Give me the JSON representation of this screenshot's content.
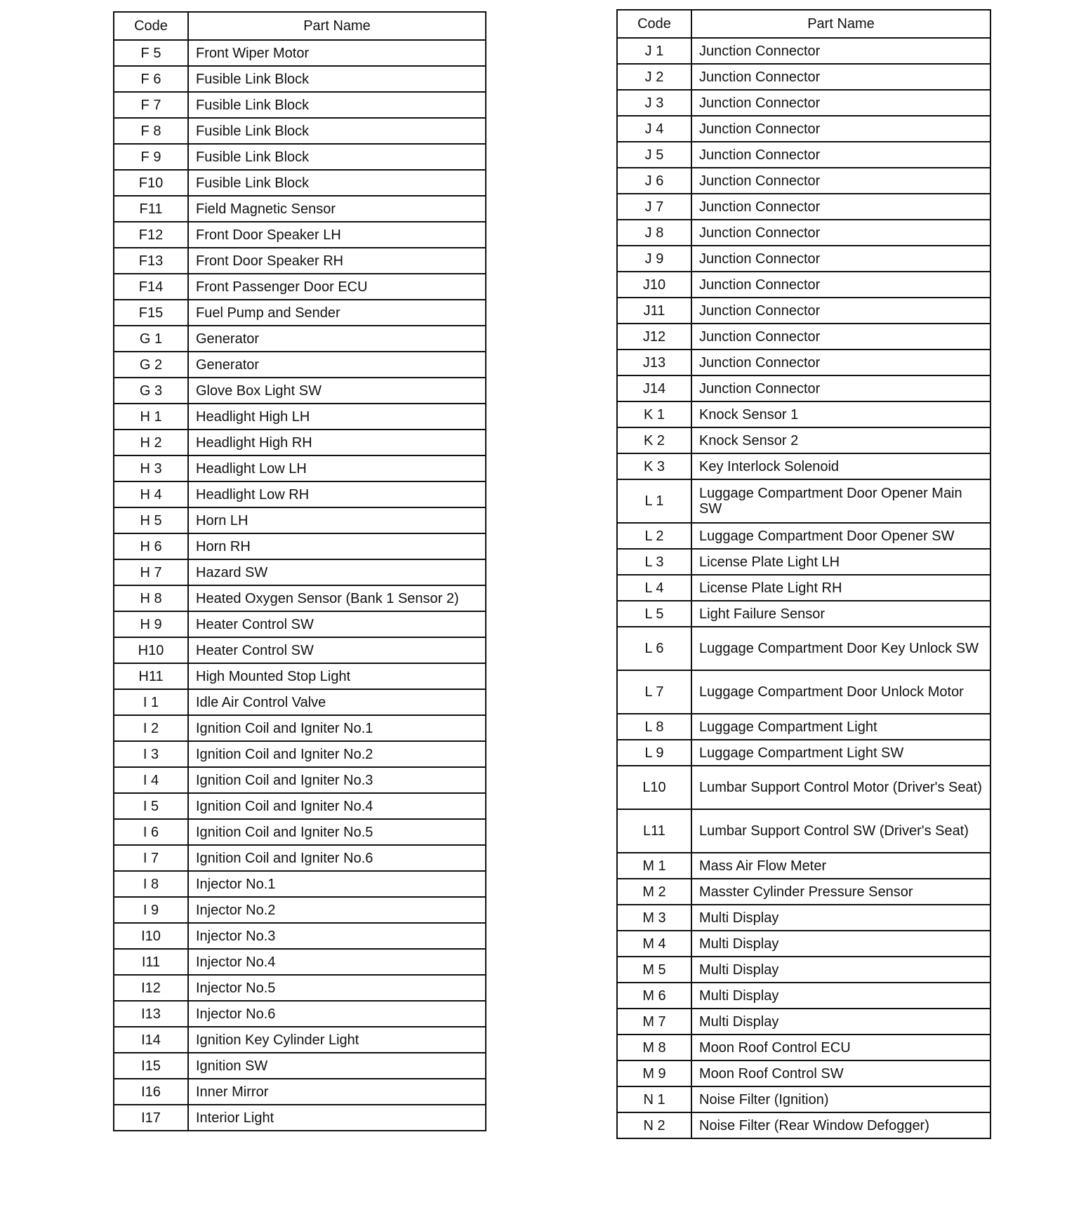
{
  "left_table": {
    "headers": [
      "Code",
      "Part Name"
    ],
    "rows": [
      [
        "F 5",
        "Front Wiper Motor"
      ],
      [
        "F 6",
        "Fusible Link Block"
      ],
      [
        "F 7",
        "Fusible Link Block"
      ],
      [
        "F 8",
        "Fusible Link Block"
      ],
      [
        "F 9",
        "Fusible Link Block"
      ],
      [
        "F10",
        "Fusible Link Block"
      ],
      [
        "F11",
        "Field Magnetic Sensor"
      ],
      [
        "F12",
        "Front Door Speaker LH"
      ],
      [
        "F13",
        "Front Door Speaker RH"
      ],
      [
        "F14",
        "Front Passenger Door ECU"
      ],
      [
        "F15",
        "Fuel Pump and Sender"
      ],
      [
        "G 1",
        "Generator"
      ],
      [
        "G 2",
        "Generator"
      ],
      [
        "G 3",
        "Glove Box Light SW"
      ],
      [
        "H 1",
        "Headlight High LH"
      ],
      [
        "H 2",
        "Headlight High RH"
      ],
      [
        "H 3",
        "Headlight Low LH"
      ],
      [
        "H 4",
        "Headlight Low RH"
      ],
      [
        "H 5",
        "Horn LH"
      ],
      [
        "H 6",
        "Horn RH"
      ],
      [
        "H 7",
        "Hazard SW"
      ],
      [
        "H 8",
        "Heated Oxygen Sensor (Bank 1 Sensor 2)"
      ],
      [
        "H 9",
        "Heater Control SW"
      ],
      [
        "H10",
        "Heater Control SW"
      ],
      [
        "H11",
        "High Mounted Stop Light"
      ],
      [
        "I 1",
        "Idle Air Control Valve"
      ],
      [
        "I 2",
        "Ignition Coil and Igniter No.1"
      ],
      [
        "I 3",
        "Ignition Coil and Igniter No.2"
      ],
      [
        "I 4",
        "Ignition Coil and Igniter No.3"
      ],
      [
        "I 5",
        "Ignition Coil and Igniter No.4"
      ],
      [
        "I 6",
        "Ignition Coil and Igniter No.5"
      ],
      [
        "I 7",
        "Ignition Coil and Igniter No.6"
      ],
      [
        "I 8",
        "Injector No.1"
      ],
      [
        "I 9",
        "Injector No.2"
      ],
      [
        "I10",
        "Injector No.3"
      ],
      [
        "I11",
        "Injector No.4"
      ],
      [
        "I12",
        "Injector No.5"
      ],
      [
        "I13",
        "Injector No.6"
      ],
      [
        "I14",
        "Ignition Key Cylinder Light"
      ],
      [
        "I15",
        "Ignition SW"
      ],
      [
        "I16",
        "Inner Mirror"
      ],
      [
        "I17",
        "Interior Light"
      ]
    ]
  },
  "right_table": {
    "headers": [
      "Code",
      "Part Name"
    ],
    "rows": [
      [
        "J 1",
        "Junction Connector"
      ],
      [
        "J 2",
        "Junction Connector"
      ],
      [
        "J 3",
        "Junction Connector"
      ],
      [
        "J 4",
        "Junction Connector"
      ],
      [
        "J 5",
        "Junction Connector"
      ],
      [
        "J 6",
        "Junction Connector"
      ],
      [
        "J 7",
        "Junction Connector"
      ],
      [
        "J 8",
        "Junction Connector"
      ],
      [
        "J 9",
        "Junction Connector"
      ],
      [
        "J10",
        "Junction Connector"
      ],
      [
        "J11",
        "Junction Connector"
      ],
      [
        "J12",
        "Junction Connector"
      ],
      [
        "J13",
        "Junction Connector"
      ],
      [
        "J14",
        "Junction Connector"
      ],
      [
        "K 1",
        "Knock Sensor 1"
      ],
      [
        "K 2",
        "Knock Sensor 2"
      ],
      [
        "K 3",
        "Key Interlock Solenoid"
      ],
      [
        "L 1",
        "Luggage Compartment Door Opener Main SW"
      ],
      [
        "L 2",
        "Luggage Compartment Door Opener SW"
      ],
      [
        "L 3",
        "License Plate Light LH"
      ],
      [
        "L 4",
        "License Plate Light RH"
      ],
      [
        "L 5",
        "Light Failure Sensor"
      ],
      [
        "L 6",
        "Luggage Compartment Door Key Unlock SW"
      ],
      [
        "L 7",
        "Luggage Compartment Door Unlock Motor"
      ],
      [
        "L 8",
        "Luggage Compartment Light"
      ],
      [
        "L 9",
        "Luggage Compartment Light SW"
      ],
      [
        "L10",
        "Lumbar Support Control Motor (Driver's Seat)"
      ],
      [
        "L11",
        "Lumbar Support Control SW (Driver's Seat)"
      ],
      [
        "M 1",
        "Mass Air Flow Meter"
      ],
      [
        "M 2",
        "Masster Cylinder Pressure Sensor"
      ],
      [
        "M 3",
        "Multi Display"
      ],
      [
        "M 4",
        "Multi Display"
      ],
      [
        "M 5",
        "Multi Display"
      ],
      [
        "M 6",
        "Multi Display"
      ],
      [
        "M 7",
        "Multi Display"
      ],
      [
        "M 8",
        "Moon Roof Control ECU"
      ],
      [
        "M 9",
        "Moon Roof Control SW"
      ],
      [
        "N 1",
        "Noise Filter (Ignition)"
      ],
      [
        "N 2",
        "Noise Filter (Rear Window Defogger)"
      ]
    ]
  }
}
